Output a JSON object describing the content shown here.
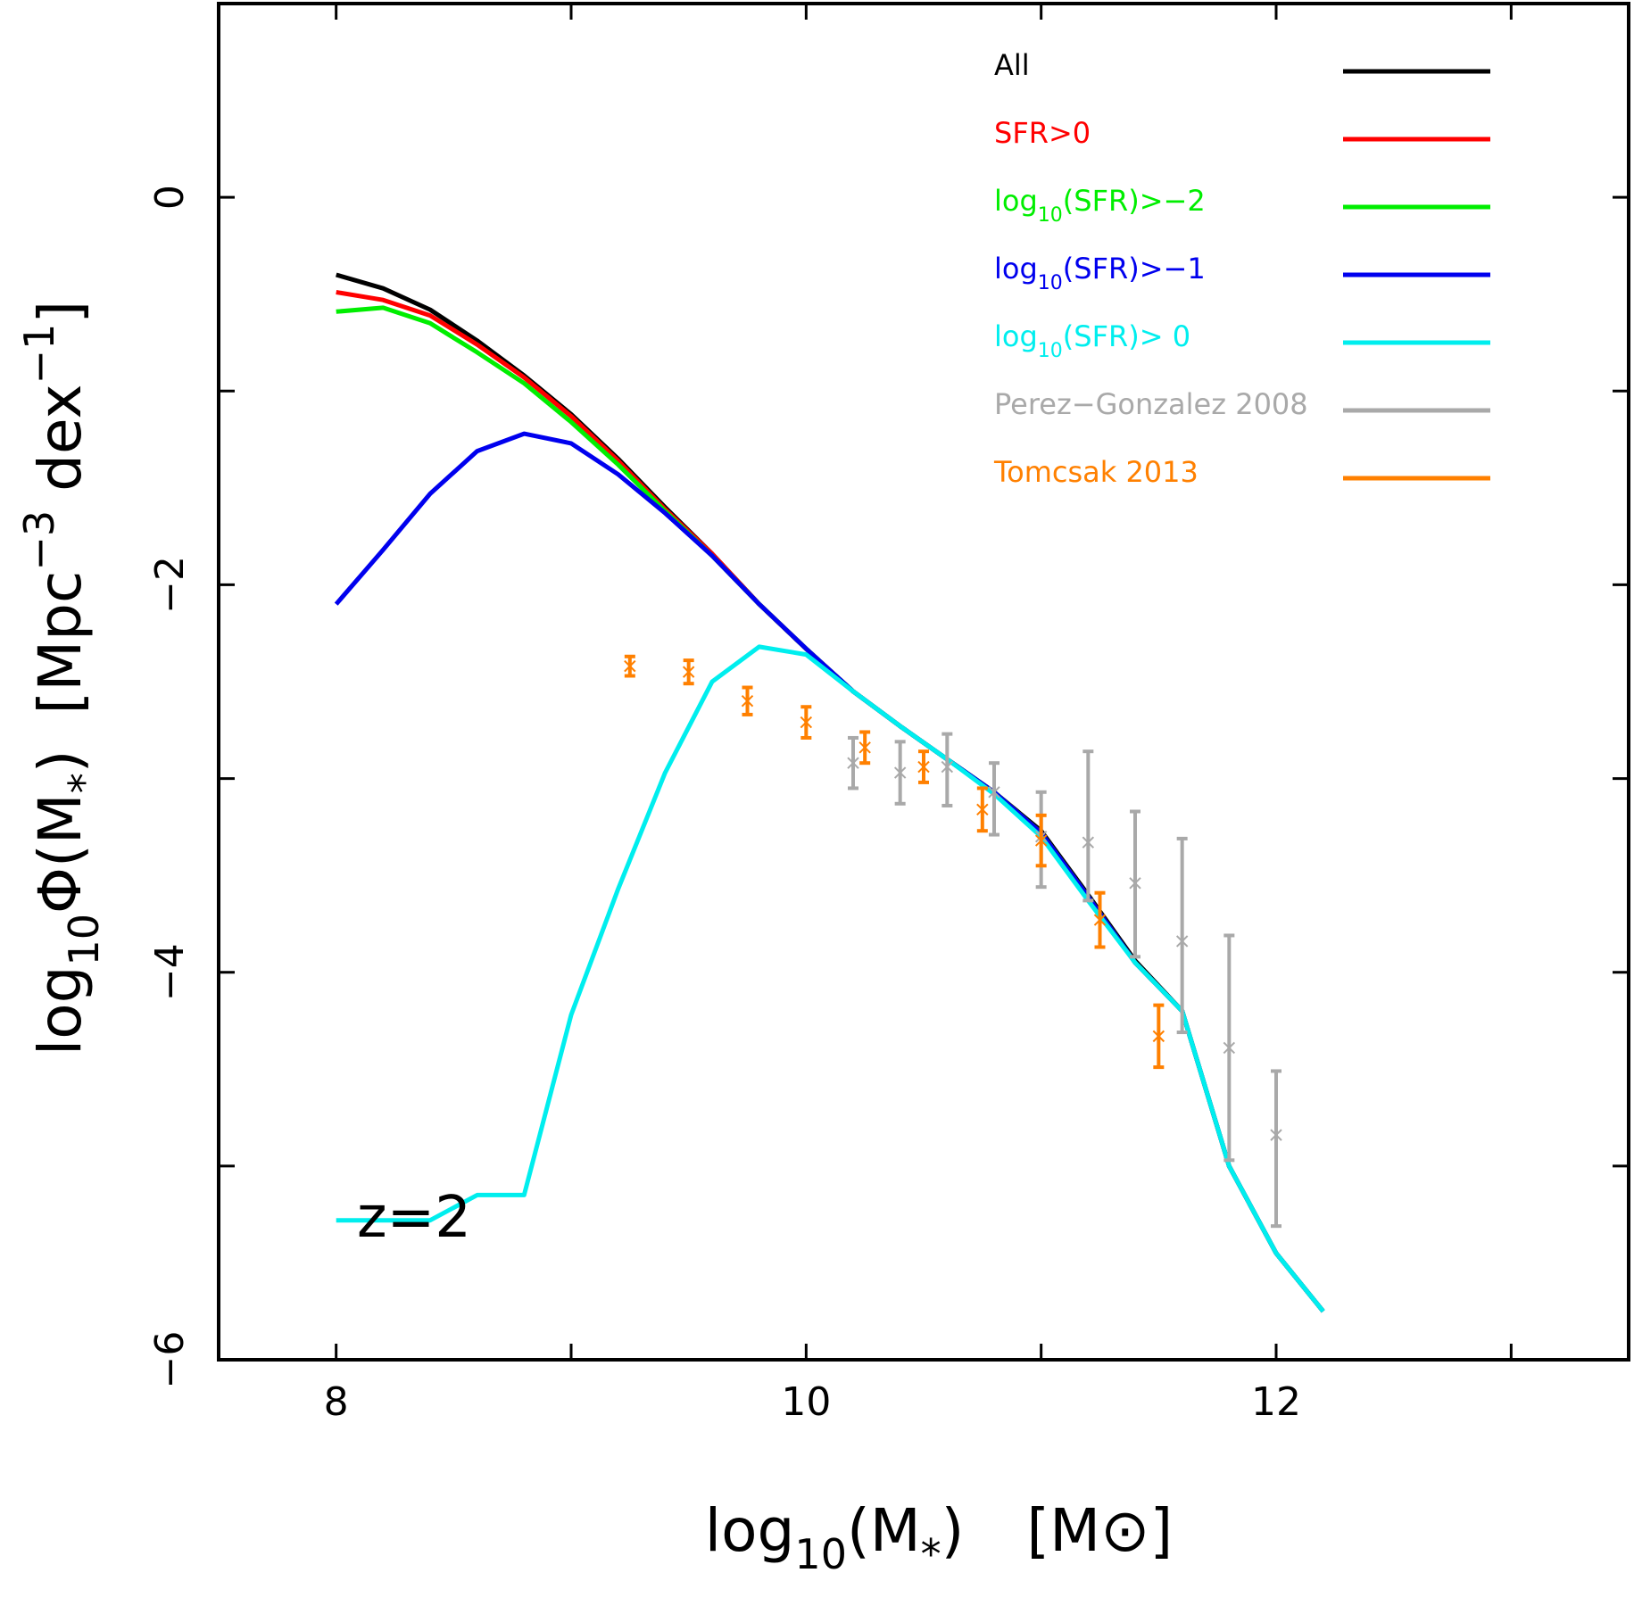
{
  "chart_data": {
    "type": "line",
    "title": "",
    "xlabel": {
      "main": "log",
      "sub": "10",
      "mid": "(M",
      "star": "*",
      "close": ")",
      "unit_open": "[M",
      "unit_sym": "⊙",
      "unit_close": "]"
    },
    "ylabel": {
      "main": "log",
      "sub": "10",
      "mid": "Φ(M",
      "star": "*",
      "close": ")",
      "unit": "[Mpc",
      "sup1": "−3",
      "dex": " dex",
      "sup2": "−1",
      "unit_close": "]"
    },
    "xlim": [
      7.5,
      13.5
    ],
    "ylim": [
      -6.0,
      1.0
    ],
    "x_ticks": [
      8,
      10,
      12
    ],
    "x_tick_labels": [
      "8",
      "10",
      "12"
    ],
    "x_minor_ticks": [
      9,
      11,
      13
    ],
    "y_ticks": [
      0,
      -2,
      -4,
      -6
    ],
    "y_tick_labels": [
      "0",
      "−2",
      "−4",
      "−6"
    ],
    "y_minor_ticks": [
      -1,
      -3,
      -5
    ],
    "annotation": "z=2",
    "series": [
      {
        "name": "All",
        "label_parts": [
          "All"
        ],
        "color": "#000000",
        "x": [
          8.0,
          8.2,
          8.4,
          8.6,
          8.8,
          9.0,
          9.2,
          9.4,
          9.6,
          9.8,
          10.0,
          10.2,
          10.4,
          10.6,
          10.8,
          11.0,
          11.2,
          11.4,
          11.6,
          11.8,
          12.0,
          12.2
        ],
        "y": [
          -0.4,
          -0.47,
          -0.58,
          -0.74,
          -0.92,
          -1.12,
          -1.35,
          -1.6,
          -1.84,
          -2.1,
          -2.33,
          -2.55,
          -2.73,
          -2.9,
          -3.07,
          -3.27,
          -3.6,
          -3.94,
          -4.2,
          -5.0,
          -5.45,
          -5.75
        ]
      },
      {
        "name": "SFR>0",
        "label_parts": [
          "SFR>0"
        ],
        "color": "#ff0000",
        "x": [
          8.0,
          8.2,
          8.4,
          8.6,
          8.8,
          9.0,
          9.2,
          9.4,
          9.6,
          9.8,
          10.0,
          10.2,
          10.4,
          10.6,
          10.8,
          11.0,
          11.2,
          11.4,
          11.6,
          11.8,
          12.0,
          12.2
        ],
        "y": [
          -0.49,
          -0.53,
          -0.61,
          -0.76,
          -0.93,
          -1.13,
          -1.36,
          -1.61,
          -1.84,
          -2.1,
          -2.33,
          -2.55,
          -2.73,
          -2.9,
          -3.07,
          -3.28,
          -3.61,
          -3.95,
          -4.2,
          -5.0,
          -5.45,
          -5.75
        ]
      },
      {
        "name": "log10(SFR)>-2",
        "label_parts": [
          "log",
          "10",
          "(SFR)>−2"
        ],
        "color": "#00ee00",
        "x": [
          8.0,
          8.2,
          8.4,
          8.6,
          8.8,
          9.0,
          9.2,
          9.4,
          9.6,
          9.8,
          10.0,
          10.2,
          10.4,
          10.6,
          10.8,
          11.0,
          11.2,
          11.4,
          11.6,
          11.8,
          12.0,
          12.2
        ],
        "y": [
          -0.59,
          -0.57,
          -0.65,
          -0.8,
          -0.96,
          -1.16,
          -1.38,
          -1.62,
          -1.85,
          -2.1,
          -2.33,
          -2.55,
          -2.73,
          -2.9,
          -3.07,
          -3.28,
          -3.61,
          -3.95,
          -4.2,
          -5.0,
          -5.45,
          -5.75
        ]
      },
      {
        "name": "log10(SFR)>-1",
        "label_parts": [
          "log",
          "10",
          "(SFR)>−1"
        ],
        "color": "#0000ee",
        "x": [
          8.0,
          8.2,
          8.4,
          8.6,
          8.8,
          9.0,
          9.2,
          9.4,
          9.6,
          9.8,
          10.0,
          10.2,
          10.4,
          10.6,
          10.8,
          11.0,
          11.2,
          11.4,
          11.6,
          11.8,
          12.0,
          12.2
        ],
        "y": [
          -2.1,
          -1.82,
          -1.53,
          -1.31,
          -1.22,
          -1.27,
          -1.43,
          -1.63,
          -1.85,
          -2.1,
          -2.33,
          -2.55,
          -2.73,
          -2.9,
          -3.07,
          -3.28,
          -3.61,
          -3.95,
          -4.2,
          -5.0,
          -5.45,
          -5.75
        ]
      },
      {
        "name": "log10(SFR)> 0",
        "label_parts": [
          "log",
          "10",
          "(SFR)> 0"
        ],
        "color": "#00eeee",
        "x": [
          8.0,
          8.2,
          8.4,
          8.6,
          8.8,
          9.0,
          9.2,
          9.4,
          9.6,
          9.8,
          10.0,
          10.2,
          10.4,
          10.6,
          10.8,
          11.0,
          11.2,
          11.4,
          11.6,
          11.8,
          12.0,
          12.2
        ],
        "y": [
          -5.28,
          -5.28,
          -5.28,
          -5.15,
          -5.15,
          -4.22,
          -3.57,
          -2.97,
          -2.5,
          -2.32,
          -2.36,
          -2.55,
          -2.73,
          -2.9,
          -3.08,
          -3.3,
          -3.63,
          -3.95,
          -4.2,
          -5.0,
          -5.45,
          -5.75
        ]
      },
      {
        "name": "Perez-Gonzalez 2008",
        "label_parts": [
          "Perez−Gonzalez 2008"
        ],
        "color": "#a9a9a9",
        "points": true,
        "x": [
          10.2,
          10.4,
          10.6,
          10.8,
          11.0,
          11.2,
          11.4,
          11.6,
          11.8,
          12.0
        ],
        "y": [
          -2.92,
          -2.97,
          -2.94,
          -3.07,
          -3.3,
          -3.33,
          -3.54,
          -3.84,
          -4.39,
          -4.84
        ],
        "y_err_low": [
          0.13,
          0.16,
          0.2,
          0.22,
          0.26,
          0.3,
          0.38,
          0.47,
          0.58,
          0.47
        ],
        "y_err_high": [
          0.13,
          0.16,
          0.17,
          0.15,
          0.23,
          0.47,
          0.37,
          0.53,
          0.58,
          0.33
        ]
      },
      {
        "name": "Tomcsak 2013",
        "label_parts": [
          "Tomcsak 2013"
        ],
        "color": "#ff8000",
        "points": true,
        "x": [
          9.25,
          9.5,
          9.75,
          10.0,
          10.25,
          10.5,
          10.75,
          11.0,
          11.25,
          11.5
        ],
        "y": [
          -2.42,
          -2.45,
          -2.6,
          -2.71,
          -2.84,
          -2.94,
          -3.16,
          -3.32,
          -3.73,
          -4.33
        ],
        "y_err_low": [
          0.05,
          0.06,
          0.07,
          0.08,
          0.08,
          0.08,
          0.11,
          0.13,
          0.14,
          0.16
        ],
        "y_err_high": [
          0.05,
          0.06,
          0.07,
          0.08,
          0.08,
          0.08,
          0.11,
          0.13,
          0.14,
          0.16
        ]
      }
    ]
  }
}
